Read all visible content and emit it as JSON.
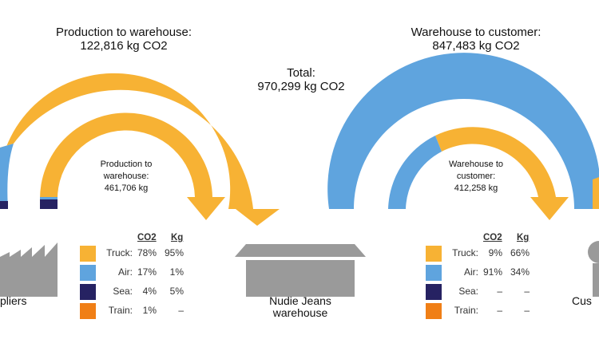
{
  "colors": {
    "truck": "#F7B234",
    "air": "#5FA4DE",
    "sea": "#262262",
    "train": "#F07F16",
    "building": "#9A9A9A"
  },
  "inbound": {
    "title_line1": "Production to warehouse:",
    "title_line2": "122,816 kg CO2",
    "inner_line1": "Production to",
    "inner_line2": "warehouse:",
    "inner_line3": "461,706 kg"
  },
  "outbound": {
    "title_line1": "Warehouse to customer:",
    "title_line2": "847,483 kg CO2",
    "inner_line1": "Warehouse to",
    "inner_line2": "customer:",
    "inner_line3": "412,258 kg"
  },
  "total": {
    "line1": "Total:",
    "line2": "970,299 kg CO2"
  },
  "places": {
    "suppliers": "pliers",
    "warehouse_line1": "Nudie Jeans",
    "warehouse_line2": "warehouse",
    "customers": "Cus"
  },
  "legend_left": {
    "header_co2": "CO2",
    "header_kg": "Kg",
    "rows": [
      {
        "label": "Truck:",
        "co2": "78%",
        "kg": "95%",
        "color": "#F7B234"
      },
      {
        "label": "Air:",
        "co2": "17%",
        "kg": "1%",
        "color": "#5FA4DE"
      },
      {
        "label": "Sea:",
        "co2": "4%",
        "kg": "5%",
        "color": "#262262"
      },
      {
        "label": "Train:",
        "co2": "1%",
        "kg": "–",
        "color": "#F07F16"
      }
    ]
  },
  "legend_right": {
    "header_co2": "CO2",
    "header_kg": "Kg",
    "rows": [
      {
        "label": "Truck:",
        "co2": "9%",
        "kg": "66%",
        "color": "#F7B234"
      },
      {
        "label": "Air:",
        "co2": "91%",
        "kg": "34%",
        "color": "#5FA4DE"
      },
      {
        "label": "Sea:",
        "co2": "–",
        "kg": "–",
        "color": "#262262"
      },
      {
        "label": "Train:",
        "co2": "–",
        "kg": "–",
        "color": "#F07F16"
      }
    ]
  }
}
